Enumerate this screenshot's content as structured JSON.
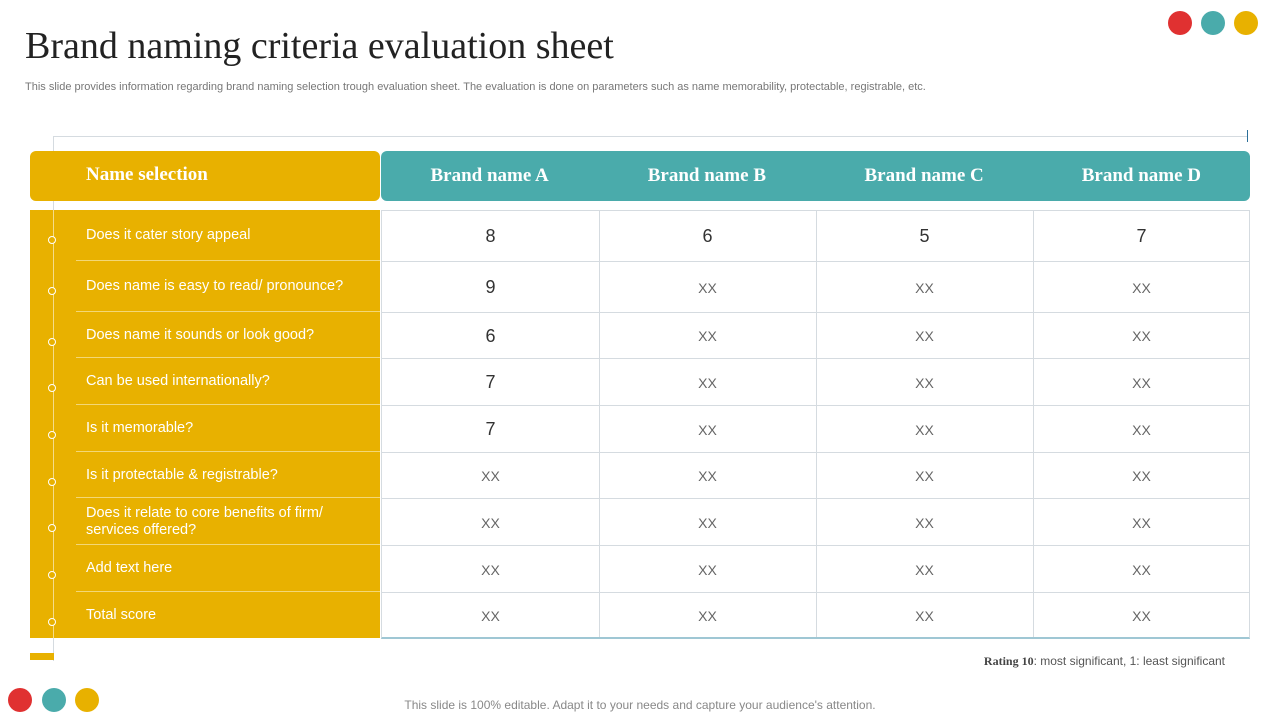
{
  "title": "Brand naming criteria evaluation sheet",
  "subtitle": "This slide provides information regarding brand naming selection trough evaluation sheet. The evaluation is done on parameters such as name memorability, protectable, registrable, etc.",
  "colors": {
    "red": "#e03131",
    "teal": "#4aabab",
    "yellow": "#e8b100"
  },
  "table": {
    "header_label": "Name selection",
    "columns": [
      "Brand name A",
      "Brand name B",
      "Brand name C",
      "Brand name D"
    ],
    "rows": [
      {
        "label": "Does it cater story appeal",
        "values": [
          "8",
          "6",
          "5",
          "7"
        ]
      },
      {
        "label": "Does name is easy to read/ pronounce?",
        "values": [
          "9",
          "XX",
          "XX",
          "XX"
        ]
      },
      {
        "label": "Does name it sounds or look good?",
        "values": [
          "6",
          "XX",
          "XX",
          "XX"
        ]
      },
      {
        "label": "Can be used internationally?",
        "values": [
          "7",
          "XX",
          "XX",
          "XX"
        ]
      },
      {
        "label": "Is it memorable?",
        "values": [
          "7",
          "XX",
          "XX",
          "XX"
        ]
      },
      {
        "label": "Is it protectable & registrable?",
        "values": [
          "XX",
          "XX",
          "XX",
          "XX"
        ]
      },
      {
        "label": "Does it relate to core benefits of firm/ services offered?",
        "values": [
          "XX",
          "XX",
          "XX",
          "XX"
        ]
      },
      {
        "label": "Add text here",
        "values": [
          "XX",
          "XX",
          "XX",
          "XX"
        ]
      },
      {
        "label": "Total score",
        "values": [
          "XX",
          "XX",
          "XX",
          "XX"
        ]
      }
    ]
  },
  "rating": {
    "label": "Rating 10",
    "text": ": most significant, 1: least significant"
  },
  "footer": "This slide is 100% editable. Adapt it to your needs and capture your audience's attention."
}
